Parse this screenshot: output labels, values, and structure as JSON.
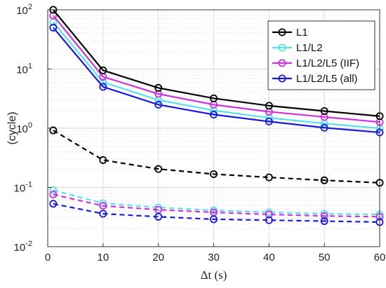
{
  "chart_data": {
    "type": "line",
    "title": "",
    "xlabel": "Δt (s)",
    "ylabel": "(cycle)",
    "xlim": [
      0,
      60
    ],
    "ylim": [
      0.01,
      100
    ],
    "yscale": "log",
    "grid": true,
    "legend_position": "top-right",
    "x": [
      1,
      10,
      20,
      30,
      40,
      50,
      60
    ],
    "x_ticks": [
      "0",
      "10",
      "20",
      "30",
      "40",
      "50",
      "60"
    ],
    "y_ticks": [
      {
        "value": 0.01,
        "base": "10",
        "exp": "-2"
      },
      {
        "value": 0.1,
        "base": "10",
        "exp": "-1"
      },
      {
        "value": 1,
        "base": "10",
        "exp": "0"
      },
      {
        "value": 10,
        "base": "10",
        "exp": "1"
      },
      {
        "value": 100,
        "base": "10",
        "exp": "2"
      }
    ],
    "series": [
      {
        "name": "L1",
        "color": "#000000",
        "style": "solid",
        "values": [
          100,
          9.5,
          4.8,
          3.2,
          2.4,
          1.95,
          1.6
        ]
      },
      {
        "name": "L1/L2",
        "color": "#58e0ee",
        "style": "solid",
        "values": [
          62,
          6.0,
          3.0,
          2.0,
          1.5,
          1.2,
          1.0
        ]
      },
      {
        "name": "L1/L2/L5 (IIF)",
        "color": "#cc33dd",
        "style": "solid",
        "values": [
          80,
          7.4,
          3.8,
          2.5,
          1.9,
          1.55,
          1.27
        ]
      },
      {
        "name": "L1/L2/L5 (all)",
        "color": "#1a1adb",
        "style": "solid",
        "values": [
          50,
          5.0,
          2.5,
          1.7,
          1.3,
          1.02,
          0.85
        ]
      },
      {
        "name": "",
        "color": "#000000",
        "style": "dashed",
        "values": [
          0.92,
          0.29,
          0.205,
          0.168,
          0.148,
          0.132,
          0.12
        ]
      },
      {
        "name": "",
        "color": "#58e0ee",
        "style": "dashed",
        "values": [
          0.09,
          0.054,
          0.046,
          0.041,
          0.038,
          0.036,
          0.035
        ]
      },
      {
        "name": "",
        "color": "#cc33dd",
        "style": "dashed",
        "values": [
          0.076,
          0.049,
          0.042,
          0.038,
          0.035,
          0.033,
          0.032
        ]
      },
      {
        "name": "",
        "color": "#1a1adb",
        "style": "dashed",
        "values": [
          0.053,
          0.036,
          0.032,
          0.029,
          0.028,
          0.027,
          0.026
        ]
      }
    ]
  }
}
